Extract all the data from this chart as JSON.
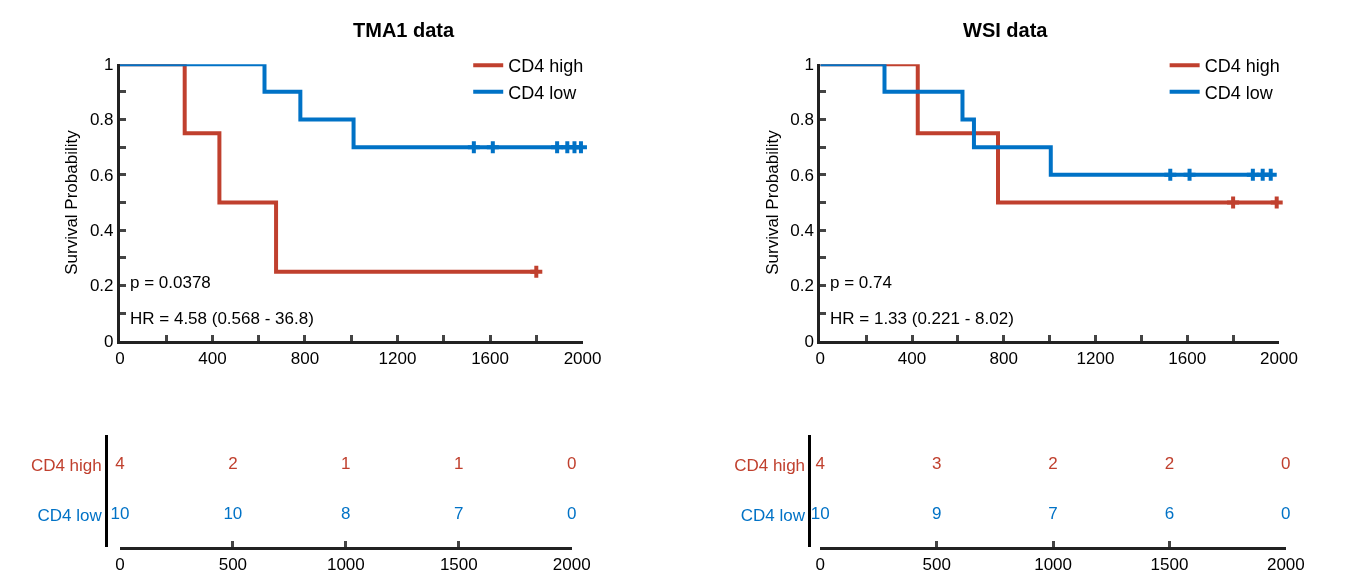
{
  "chart_data": [
    {
      "type": "step",
      "title": "TMA1 data",
      "ylabel": "Survival Probability",
      "xlim": [
        0,
        2000
      ],
      "xticks": [
        0,
        {
          "value": 200,
          "label": null
        },
        400,
        {
          "value": 600,
          "label": null
        },
        800,
        {
          "value": 1000,
          "label": null
        },
        1200,
        {
          "value": 1400,
          "label": null
        },
        1600,
        {
          "value": 1800,
          "label": null
        },
        2000
      ],
      "ylim": [
        0,
        1
      ],
      "yticks": [
        0,
        {
          "value": 0.1,
          "label": null
        },
        0.2,
        {
          "value": 0.3,
          "label": null
        },
        0.4,
        {
          "value": 0.5,
          "label": null
        },
        0.6,
        {
          "value": 0.7,
          "label": null
        },
        0.8,
        {
          "value": 0.9,
          "label": null
        },
        1
      ],
      "legend": "top right",
      "annotations": [
        "p = 0.0378",
        "HR = 4.58 (0.568 - 36.8)"
      ],
      "series": [
        {
          "name": "CD4 high",
          "color": "#c0402e",
          "x": [
            0,
            280,
            430,
            675,
            1800
          ],
          "values": [
            1,
            0.75,
            0.5,
            0.25,
            0.25
          ]
        },
        {
          "name": "CD4 low",
          "color": "#0072c6",
          "x": [
            0,
            625,
            780,
            1010,
            2000
          ],
          "values": [
            1,
            0.9,
            0.8,
            0.7,
            0.7
          ]
        },
        {
          "type": "scatter",
          "marker": "cross",
          "color": "#c0402e",
          "x": [
            1800
          ],
          "values": [
            0.25
          ]
        },
        {
          "type": "scatter",
          "marker": "cross",
          "color": "#0072c6",
          "x": [
            1530,
            1612,
            1890,
            1934,
            1965,
            1993
          ],
          "values": [
            0.7,
            0.7,
            0.7,
            0.7,
            0.7,
            0.7
          ]
        }
      ]
    },
    {
      "type": "step",
      "title": "WSI data",
      "ylabel": "Survival Probability",
      "xlim": [
        0,
        2000
      ],
      "xticks": [
        0,
        {
          "value": 200,
          "label": null
        },
        400,
        {
          "value": 600,
          "label": null
        },
        800,
        {
          "value": 1000,
          "label": null
        },
        1200,
        {
          "value": 1400,
          "label": null
        },
        1600,
        {
          "value": 1800,
          "label": null
        },
        2000
      ],
      "ylim": [
        0,
        1
      ],
      "yticks": [
        0,
        {
          "value": 0.1,
          "label": null
        },
        0.2,
        {
          "value": 0.3,
          "label": null
        },
        0.4,
        {
          "value": 0.5,
          "label": null
        },
        0.6,
        {
          "value": 0.7,
          "label": null
        },
        0.8,
        {
          "value": 0.9,
          "label": null
        },
        1
      ],
      "legend": "top right",
      "annotations": [
        "p = 0.74",
        "HR = 1.33 (0.221 - 8.02)"
      ],
      "series": [
        {
          "name": "CD4 high",
          "color": "#c0402e",
          "x": [
            0,
            425,
            775,
            1990
          ],
          "values": [
            1,
            0.75,
            0.5,
            0.5
          ]
        },
        {
          "name": "CD4 low",
          "color": "#0072c6",
          "x": [
            0,
            280,
            620,
            670,
            1005,
            1964
          ],
          "values": [
            1,
            0.9,
            0.8,
            0.7,
            0.6,
            0.6
          ]
        },
        {
          "type": "scatter",
          "marker": "cross",
          "color": "#c0402e",
          "x": [
            1800,
            1990
          ],
          "values": [
            0.5,
            0.5
          ]
        },
        {
          "type": "scatter",
          "marker": "cross",
          "color": "#0072c6",
          "x": [
            1526,
            1610,
            1886,
            1929,
            1964
          ],
          "values": [
            0.6,
            0.6,
            0.6,
            0.6,
            0.6
          ]
        }
      ]
    },
    {
      "type": "heatmap",
      "categories": [
        "0",
        "500",
        "1000",
        "1500",
        "2000"
      ],
      "y_categories": [
        "CD4 high",
        "CD4 low"
      ],
      "colors": [
        "#c0402e",
        "#0072c6"
      ],
      "data_labels": true,
      "cells": [
        [
          4,
          2,
          1,
          1,
          0
        ],
        [
          10,
          10,
          8,
          7,
          0
        ]
      ]
    },
    {
      "type": "heatmap",
      "categories": [
        "0",
        "500",
        "1000",
        "1500",
        "2000"
      ],
      "y_categories": [
        "CD4 high",
        "CD4 low"
      ],
      "colors": [
        "#c0402e",
        "#0072c6"
      ],
      "data_labels": true,
      "cells": [
        [
          4,
          3,
          2,
          2,
          0
        ],
        [
          10,
          9,
          7,
          6,
          0
        ]
      ]
    }
  ]
}
